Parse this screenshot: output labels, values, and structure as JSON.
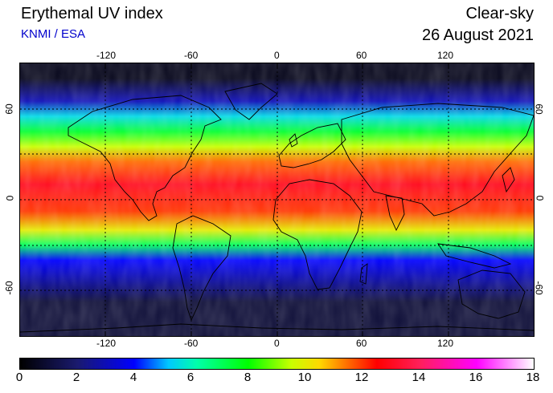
{
  "header": {
    "title": "Erythemal UV index",
    "subtitle": "KNMI / ESA",
    "subtitle_color": "#0000cc",
    "condition": "Clear-sky",
    "date": "26 August 2021"
  },
  "map": {
    "projection": "equirectangular",
    "lon_range": [
      -180,
      180
    ],
    "lat_range": [
      -90,
      90
    ],
    "lon_ticks": [
      "-120",
      "-60",
      "0",
      "60",
      "120"
    ],
    "lat_ticks": [
      "60",
      "0",
      "-60"
    ],
    "gridlines": "dotted",
    "gridline_lat": [
      60,
      30,
      0,
      -30,
      -60
    ],
    "gridline_lon": [
      -120,
      -60,
      0,
      60,
      120
    ],
    "coastlines": true,
    "field_description_bands": [
      {
        "lat_from": 90,
        "lat_to": 70,
        "uv": 0.5
      },
      {
        "lat_from": 70,
        "lat_to": 60,
        "uv": 3
      },
      {
        "lat_from": 60,
        "lat_to": 50,
        "uv": 5.5
      },
      {
        "lat_from": 50,
        "lat_to": 40,
        "uv": 7.5
      },
      {
        "lat_from": 40,
        "lat_to": 30,
        "uv": 9.5
      },
      {
        "lat_from": 30,
        "lat_to": 20,
        "uv": 11.5
      },
      {
        "lat_from": 20,
        "lat_to": 0,
        "uv": 13
      },
      {
        "lat_from": 0,
        "lat_to": -15,
        "uv": 12
      },
      {
        "lat_from": -15,
        "lat_to": -25,
        "uv": 10
      },
      {
        "lat_from": -25,
        "lat_to": -35,
        "uv": 7
      },
      {
        "lat_from": -35,
        "lat_to": -45,
        "uv": 4
      },
      {
        "lat_from": -45,
        "lat_to": -90,
        "uv": 1
      }
    ]
  },
  "colorbar": {
    "ticks": [
      "0",
      "2",
      "4",
      "6",
      "8",
      "10",
      "12",
      "14",
      "16",
      "18"
    ],
    "range": [
      0,
      18
    ],
    "stops": [
      {
        "value": 0,
        "color": "#000000"
      },
      {
        "value": 2,
        "color": "#1a1a6e"
      },
      {
        "value": 4,
        "color": "#0000ff"
      },
      {
        "value": 5.2,
        "color": "#00c8ff"
      },
      {
        "value": 6.2,
        "color": "#00ffaa"
      },
      {
        "value": 8,
        "color": "#00ff00"
      },
      {
        "value": 9.5,
        "color": "#c8ff00"
      },
      {
        "value": 10.5,
        "color": "#ffd700"
      },
      {
        "value": 11.5,
        "color": "#ff6a00"
      },
      {
        "value": 12.5,
        "color": "#ff0000"
      },
      {
        "value": 14,
        "color": "#ff1f5a"
      },
      {
        "value": 16,
        "color": "#ff00ff"
      },
      {
        "value": 18,
        "color": "#ffffff"
      }
    ]
  }
}
